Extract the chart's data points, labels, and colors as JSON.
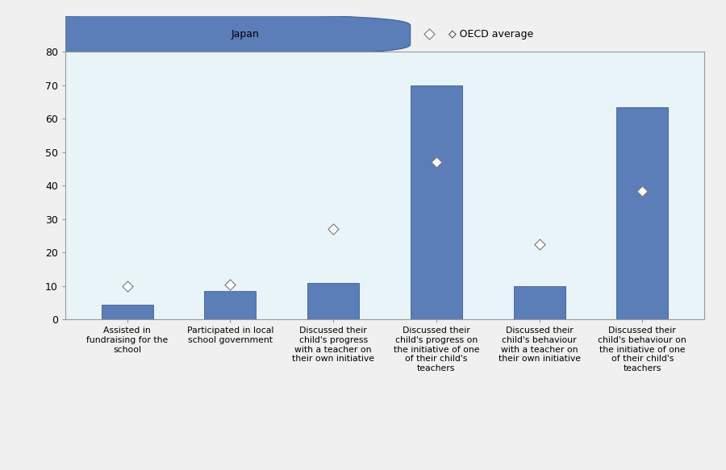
{
  "categories": [
    "Assisted in\nfundraising for the\nschool",
    "Participated in local\nschool government",
    "Discussed their\nchild's progress\nwith a teacher on\ntheir own initiative",
    "Discussed their\nchild's progress on\nthe initiative of one\nof their child's\nteachers",
    "Discussed their\nchild's behaviour\nwith a teacher on\ntheir own initiative",
    "Discussed their\nchild's behaviour on\nthe initiative of one\nof their child's\nteachers"
  ],
  "japan_values": [
    4.5,
    8.5,
    11,
    70,
    10,
    63.5
  ],
  "oecd_values": [
    10,
    10.5,
    27,
    47,
    22.5,
    38.5
  ],
  "bar_color": "#5b7db8",
  "bar_edgecolor": "#3d5f96",
  "diamond_facecolor": "white",
  "diamond_edgecolor": "#777777",
  "plot_bg_color": "#e8f4f8",
  "fig_bg_color": "#f0f0f0",
  "legend_bg_color": "#e8e8e8",
  "spine_color": "#999999",
  "legend_japan_label": "Japan",
  "legend_oecd_label": "◇ OECD average",
  "ylim": [
    0,
    80
  ],
  "yticks": [
    0,
    10,
    20,
    30,
    40,
    50,
    60,
    70,
    80
  ],
  "bar_width": 0.5,
  "tick_fontsize": 9,
  "label_fontsize": 7.8,
  "legend_fontsize": 9
}
